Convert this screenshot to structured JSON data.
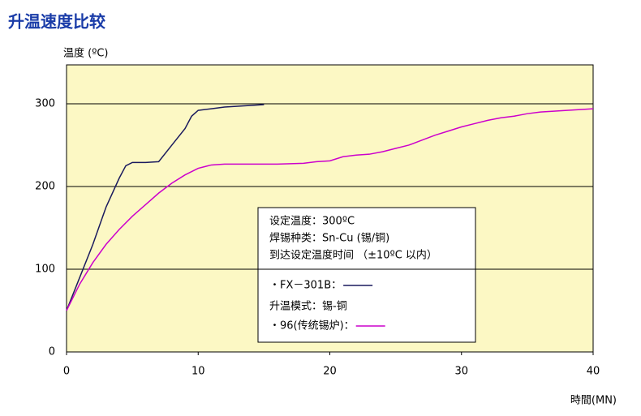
{
  "chart_data": {
    "type": "line",
    "title": "升温速度比较",
    "y_label": "温度 (ºC)",
    "x_label": "時間(MN)",
    "xlim": [
      0,
      40
    ],
    "xticks": [
      0,
      10,
      20,
      30,
      40
    ],
    "ylim": [
      0,
      347
    ],
    "yticks": [
      0,
      100,
      200,
      300
    ],
    "grid": true,
    "annotations": [
      "设定温度：300ºC",
      "焊锡种类：Sn-Cu (锡/铜)",
      "到达设定温度时间 （±10ºC 以内）",
      "升温模式：锡-铜"
    ],
    "series": [
      {
        "name": "・FX－301B：",
        "color": "#1a1a5e",
        "x": [
          0,
          1,
          2,
          3,
          4,
          4.5,
          5,
          6,
          7,
          8,
          9,
          9.5,
          10,
          11,
          12,
          13,
          14,
          15
        ],
        "values": [
          50,
          90,
          130,
          175,
          210,
          225,
          229,
          229,
          230,
          250,
          270,
          285,
          292,
          294,
          296,
          297,
          298,
          299
        ]
      },
      {
        "name": "・96(传统锡炉)：",
        "color": "#cc00cc",
        "x": [
          0,
          1,
          2,
          3,
          4,
          5,
          6,
          7,
          8,
          9,
          10,
          11,
          12,
          14,
          16,
          18,
          19,
          20,
          21,
          22,
          23,
          24,
          25,
          26,
          27,
          28,
          29,
          30,
          31,
          32,
          33,
          34,
          35,
          36,
          37,
          38,
          39,
          40
        ],
        "values": [
          50,
          82,
          108,
          130,
          148,
          164,
          178,
          192,
          204,
          214,
          222,
          226,
          227,
          227,
          227,
          228,
          230,
          231,
          236,
          238,
          239,
          242,
          246,
          250,
          256,
          262,
          267,
          272,
          276,
          280,
          283,
          285,
          288,
          290,
          291,
          292,
          293,
          294
        ]
      }
    ]
  }
}
